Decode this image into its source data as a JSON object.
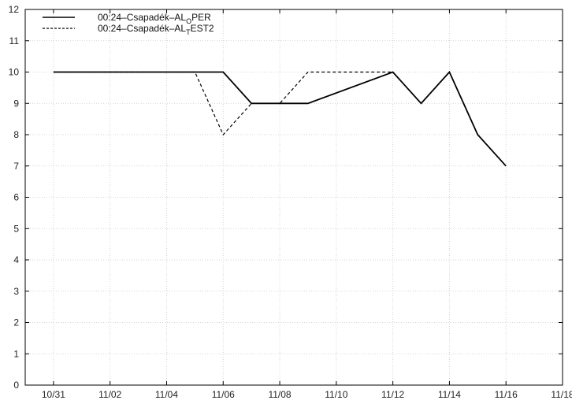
{
  "chart_data": {
    "type": "line",
    "title": "",
    "xlabel": "",
    "ylabel": "",
    "x_tick_labels": [
      "10/31",
      "11/02",
      "11/04",
      "11/06",
      "11/08",
      "11/10",
      "11/12",
      "11/14",
      "11/16",
      "11/18"
    ],
    "x_tick_day_index": [
      0,
      2,
      4,
      6,
      8,
      10,
      12,
      14,
      16,
      18
    ],
    "xlim_day_index": [
      -1,
      18
    ],
    "ylim": [
      0,
      12
    ],
    "y_ticks": [
      0,
      1,
      2,
      3,
      4,
      5,
      6,
      7,
      8,
      9,
      10,
      11,
      12
    ],
    "grid": true,
    "legend_position": "top-left",
    "series": [
      {
        "name": "00:24–Csapadék–AL_OPER",
        "legend_prefix": "00:24–Csapadék–AL",
        "legend_sub": "O",
        "legend_suffix": "PER",
        "style": "solid",
        "color": "#000000",
        "x_day_index": [
          0,
          5,
          6,
          7,
          8,
          9,
          12,
          13,
          14,
          15,
          16
        ],
        "values": [
          10,
          10,
          10,
          9,
          9,
          9,
          10,
          9,
          10,
          8,
          7
        ]
      },
      {
        "name": "00:24–Csapadék–AL_TEST2",
        "legend_prefix": "00:24–Csapadék–AL",
        "legend_sub": "T",
        "legend_suffix": "EST2",
        "style": "dashed",
        "color": "#000000",
        "x_day_index": [
          0,
          5,
          6,
          7,
          8,
          9,
          12
        ],
        "values": [
          10,
          10,
          8,
          9,
          9,
          10,
          10
        ]
      }
    ]
  }
}
